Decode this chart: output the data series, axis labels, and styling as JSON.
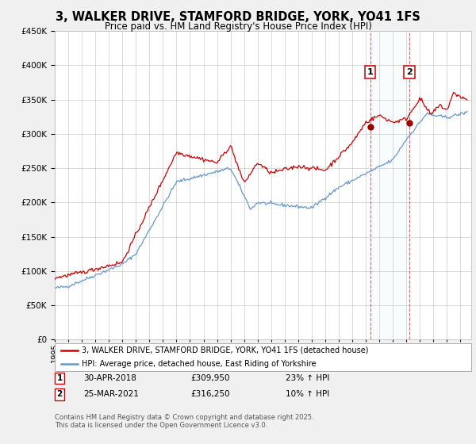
{
  "title": "3, WALKER DRIVE, STAMFORD BRIDGE, YORK, YO41 1FS",
  "subtitle": "Price paid vs. HM Land Registry's House Price Index (HPI)",
  "legend_line1": "3, WALKER DRIVE, STAMFORD BRIDGE, YORK, YO41 1FS (detached house)",
  "legend_line2": "HPI: Average price, detached house, East Riding of Yorkshire",
  "footnote": "Contains HM Land Registry data © Crown copyright and database right 2025.\nThis data is licensed under the Open Government Licence v3.0.",
  "sale1_label": "1",
  "sale1_date": "30-APR-2018",
  "sale1_price": "£309,950",
  "sale1_hpi": "23% ↑ HPI",
  "sale2_label": "2",
  "sale2_date": "25-MAR-2021",
  "sale2_price": "£316,250",
  "sale2_hpi": "10% ↑ HPI",
  "sale1_year": 2018.33,
  "sale2_year": 2021.23,
  "sale1_value": 309950,
  "sale2_value": 316250,
  "ylim": [
    0,
    450000
  ],
  "xlim_start": 1995,
  "xlim_end": 2025.8,
  "red_color": "#cc0000",
  "blue_color": "#6699cc",
  "background_color": "#f0f0f0",
  "plot_bg_color": "#ffffff",
  "grid_color": "#cccccc",
  "sale_marker_color": "#990000",
  "title_fontsize": 10.5,
  "subtitle_fontsize": 8.5
}
